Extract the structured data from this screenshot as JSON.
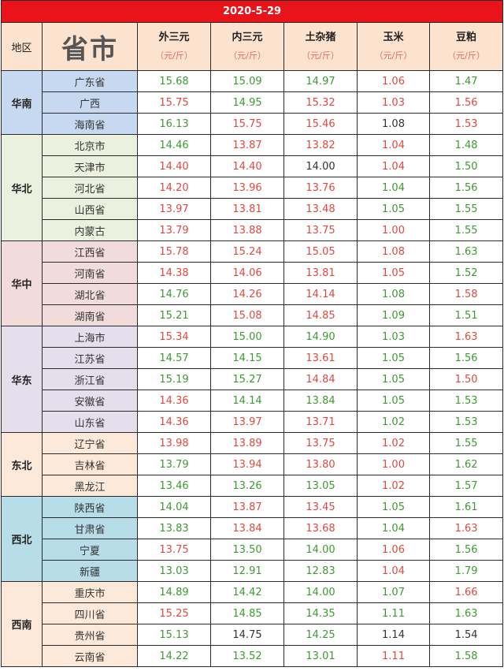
{
  "title": "2020-5-29",
  "headers": {
    "region": "地区",
    "province": "省市",
    "columns": [
      {
        "name": "外三元",
        "unit": "（元/斤）"
      },
      {
        "name": "内三元",
        "unit": "（元/斤）"
      },
      {
        "name": "土杂猪",
        "unit": "（元/斤）"
      },
      {
        "name": "玉米",
        "unit": "（元/斤）"
      },
      {
        "name": "豆粕",
        "unit": "（元/斤）"
      }
    ]
  },
  "colors": {
    "up": "#e0493f",
    "down": "#3e9a32",
    "flat": "#333333",
    "title_bar": "#e8141a",
    "header_bg": "#fbe3d0"
  },
  "regions": [
    {
      "name": "华南",
      "color": "#c6d9f0",
      "rows": [
        {
          "province": "广东省",
          "values": [
            [
              "15.68",
              "down"
            ],
            [
              "15.09",
              "down"
            ],
            [
              "14.97",
              "down"
            ],
            [
              "1.06",
              "up"
            ],
            [
              "1.47",
              "down"
            ]
          ]
        },
        {
          "province": "广西",
          "values": [
            [
              "15.75",
              "up"
            ],
            [
              "14.95",
              "down"
            ],
            [
              "15.32",
              "up"
            ],
            [
              "1.03",
              "up"
            ],
            [
              "1.56",
              "up"
            ]
          ]
        },
        {
          "province": "海南省",
          "values": [
            [
              "16.13",
              "down"
            ],
            [
              "15.75",
              "up"
            ],
            [
              "15.46",
              "up"
            ],
            [
              "1.08",
              "flat"
            ],
            [
              "1.53",
              "up"
            ]
          ]
        }
      ]
    },
    {
      "name": "华北",
      "color": "#ebf1de",
      "rows": [
        {
          "province": "北京市",
          "values": [
            [
              "14.46",
              "down"
            ],
            [
              "13.87",
              "up"
            ],
            [
              "13.82",
              "up"
            ],
            [
              "1.04",
              "up"
            ],
            [
              "1.48",
              "down"
            ]
          ]
        },
        {
          "province": "天津市",
          "values": [
            [
              "14.40",
              "up"
            ],
            [
              "14.40",
              "up"
            ],
            [
              "14.00",
              "flat"
            ],
            [
              "1.04",
              "up"
            ],
            [
              "1.50",
              "down"
            ]
          ]
        },
        {
          "province": "河北省",
          "values": [
            [
              "14.20",
              "up"
            ],
            [
              "13.96",
              "up"
            ],
            [
              "13.76",
              "up"
            ],
            [
              "1.04",
              "down"
            ],
            [
              "1.56",
              "down"
            ]
          ]
        },
        {
          "province": "山西省",
          "values": [
            [
              "13.97",
              "up"
            ],
            [
              "13.81",
              "up"
            ],
            [
              "13.48",
              "up"
            ],
            [
              "1.05",
              "down"
            ],
            [
              "1.55",
              "down"
            ]
          ]
        },
        {
          "province": "内蒙古",
          "values": [
            [
              "13.79",
              "up"
            ],
            [
              "13.88",
              "up"
            ],
            [
              "13.75",
              "up"
            ],
            [
              "1.00",
              "up"
            ],
            [
              "1.55",
              "down"
            ]
          ]
        }
      ]
    },
    {
      "name": "华中",
      "color": "#f2dcdb",
      "rows": [
        {
          "province": "江西省",
          "values": [
            [
              "15.78",
              "up"
            ],
            [
              "15.24",
              "up"
            ],
            [
              "15.05",
              "up"
            ],
            [
              "1.08",
              "up"
            ],
            [
              "1.63",
              "down"
            ]
          ]
        },
        {
          "province": "河南省",
          "values": [
            [
              "14.38",
              "up"
            ],
            [
              "14.06",
              "up"
            ],
            [
              "13.81",
              "up"
            ],
            [
              "1.05",
              "up"
            ],
            [
              "1.52",
              "down"
            ]
          ]
        },
        {
          "province": "湖北省",
          "values": [
            [
              "14.76",
              "down"
            ],
            [
              "14.26",
              "up"
            ],
            [
              "14.14",
              "up"
            ],
            [
              "1.08",
              "down"
            ],
            [
              "1.58",
              "up"
            ]
          ]
        },
        {
          "province": "湖南省",
          "values": [
            [
              "15.21",
              "down"
            ],
            [
              "15.08",
              "up"
            ],
            [
              "14.85",
              "up"
            ],
            [
              "1.09",
              "down"
            ],
            [
              "1.51",
              "down"
            ]
          ]
        }
      ]
    },
    {
      "name": "华东",
      "color": "#e4dfec",
      "rows": [
        {
          "province": "上海市",
          "values": [
            [
              "15.34",
              "up"
            ],
            [
              "15.00",
              "down"
            ],
            [
              "14.90",
              "down"
            ],
            [
              "1.03",
              "down"
            ],
            [
              "1.63",
              "up"
            ]
          ]
        },
        {
          "province": "江苏省",
          "values": [
            [
              "14.57",
              "down"
            ],
            [
              "14.15",
              "down"
            ],
            [
              "13.61",
              "up"
            ],
            [
              "1.05",
              "down"
            ],
            [
              "1.56",
              "down"
            ]
          ]
        },
        {
          "province": "浙江省",
          "values": [
            [
              "15.19",
              "down"
            ],
            [
              "15.27",
              "down"
            ],
            [
              "14.84",
              "up"
            ],
            [
              "1.05",
              "down"
            ],
            [
              "1.50",
              "up"
            ]
          ]
        },
        {
          "province": "安徽省",
          "values": [
            [
              "14.36",
              "up"
            ],
            [
              "14.14",
              "down"
            ],
            [
              "13.84",
              "down"
            ],
            [
              "1.05",
              "down"
            ],
            [
              "1.53",
              "down"
            ]
          ]
        },
        {
          "province": "山东省",
          "values": [
            [
              "14.36",
              "up"
            ],
            [
              "13.97",
              "up"
            ],
            [
              "13.71",
              "up"
            ],
            [
              "1.02",
              "down"
            ],
            [
              "1.53",
              "down"
            ]
          ]
        }
      ]
    },
    {
      "name": "东北",
      "color": "#fde9d9",
      "rows": [
        {
          "province": "辽宁省",
          "values": [
            [
              "13.98",
              "up"
            ],
            [
              "13.89",
              "up"
            ],
            [
              "13.75",
              "up"
            ],
            [
              "1.02",
              "up"
            ],
            [
              "1.55",
              "down"
            ]
          ]
        },
        {
          "province": "吉林省",
          "values": [
            [
              "13.79",
              "down"
            ],
            [
              "13.94",
              "up"
            ],
            [
              "13.80",
              "up"
            ],
            [
              "1.00",
              "up"
            ],
            [
              "1.62",
              "down"
            ]
          ]
        },
        {
          "province": "黑龙江",
          "values": [
            [
              "13.46",
              "down"
            ],
            [
              "13.26",
              "down"
            ],
            [
              "13.05",
              "down"
            ],
            [
              "1.02",
              "up"
            ],
            [
              "1.57",
              "down"
            ]
          ]
        }
      ]
    },
    {
      "name": "西北",
      "color": "#b7dde8",
      "rows": [
        {
          "province": "陕西省",
          "values": [
            [
              "14.04",
              "down"
            ],
            [
              "13.87",
              "up"
            ],
            [
              "13.45",
              "up"
            ],
            [
              "1.05",
              "down"
            ],
            [
              "1.61",
              "down"
            ]
          ]
        },
        {
          "province": "甘肃省",
          "values": [
            [
              "13.83",
              "down"
            ],
            [
              "13.84",
              "up"
            ],
            [
              "13.68",
              "up"
            ],
            [
              "1.04",
              "down"
            ],
            [
              "1.63",
              "up"
            ]
          ]
        },
        {
          "province": "宁夏",
          "values": [
            [
              "13.75",
              "up"
            ],
            [
              "13.50",
              "down"
            ],
            [
              "14.00",
              "down"
            ],
            [
              "1.06",
              "up"
            ],
            [
              "1.56",
              "down"
            ]
          ]
        },
        {
          "province": "新疆",
          "values": [
            [
              "13.03",
              "down"
            ],
            [
              "12.91",
              "down"
            ],
            [
              "12.83",
              "down"
            ],
            [
              "1.04",
              "up"
            ],
            [
              "1.79",
              "down"
            ]
          ]
        }
      ]
    },
    {
      "name": "西南",
      "color": "#fde9d9",
      "rows": [
        {
          "province": "重庆市",
          "values": [
            [
              "14.89",
              "down"
            ],
            [
              "14.42",
              "down"
            ],
            [
              "14.00",
              "down"
            ],
            [
              "1.07",
              "down"
            ],
            [
              "1.66",
              "up"
            ]
          ]
        },
        {
          "province": "四川省",
          "values": [
            [
              "15.25",
              "up"
            ],
            [
              "14.85",
              "down"
            ],
            [
              "14.35",
              "down"
            ],
            [
              "1.11",
              "down"
            ],
            [
              "1.63",
              "down"
            ]
          ]
        },
        {
          "province": "贵州省",
          "values": [
            [
              "15.13",
              "down"
            ],
            [
              "14.75",
              "flat"
            ],
            [
              "14.25",
              "down"
            ],
            [
              "1.14",
              "flat"
            ],
            [
              "1.54",
              "flat"
            ]
          ]
        },
        {
          "province": "云南省",
          "values": [
            [
              "14.22",
              "down"
            ],
            [
              "13.52",
              "down"
            ],
            [
              "13.01",
              "down"
            ],
            [
              "1.11",
              "up"
            ],
            [
              "1.58",
              "down"
            ]
          ]
        }
      ]
    }
  ]
}
